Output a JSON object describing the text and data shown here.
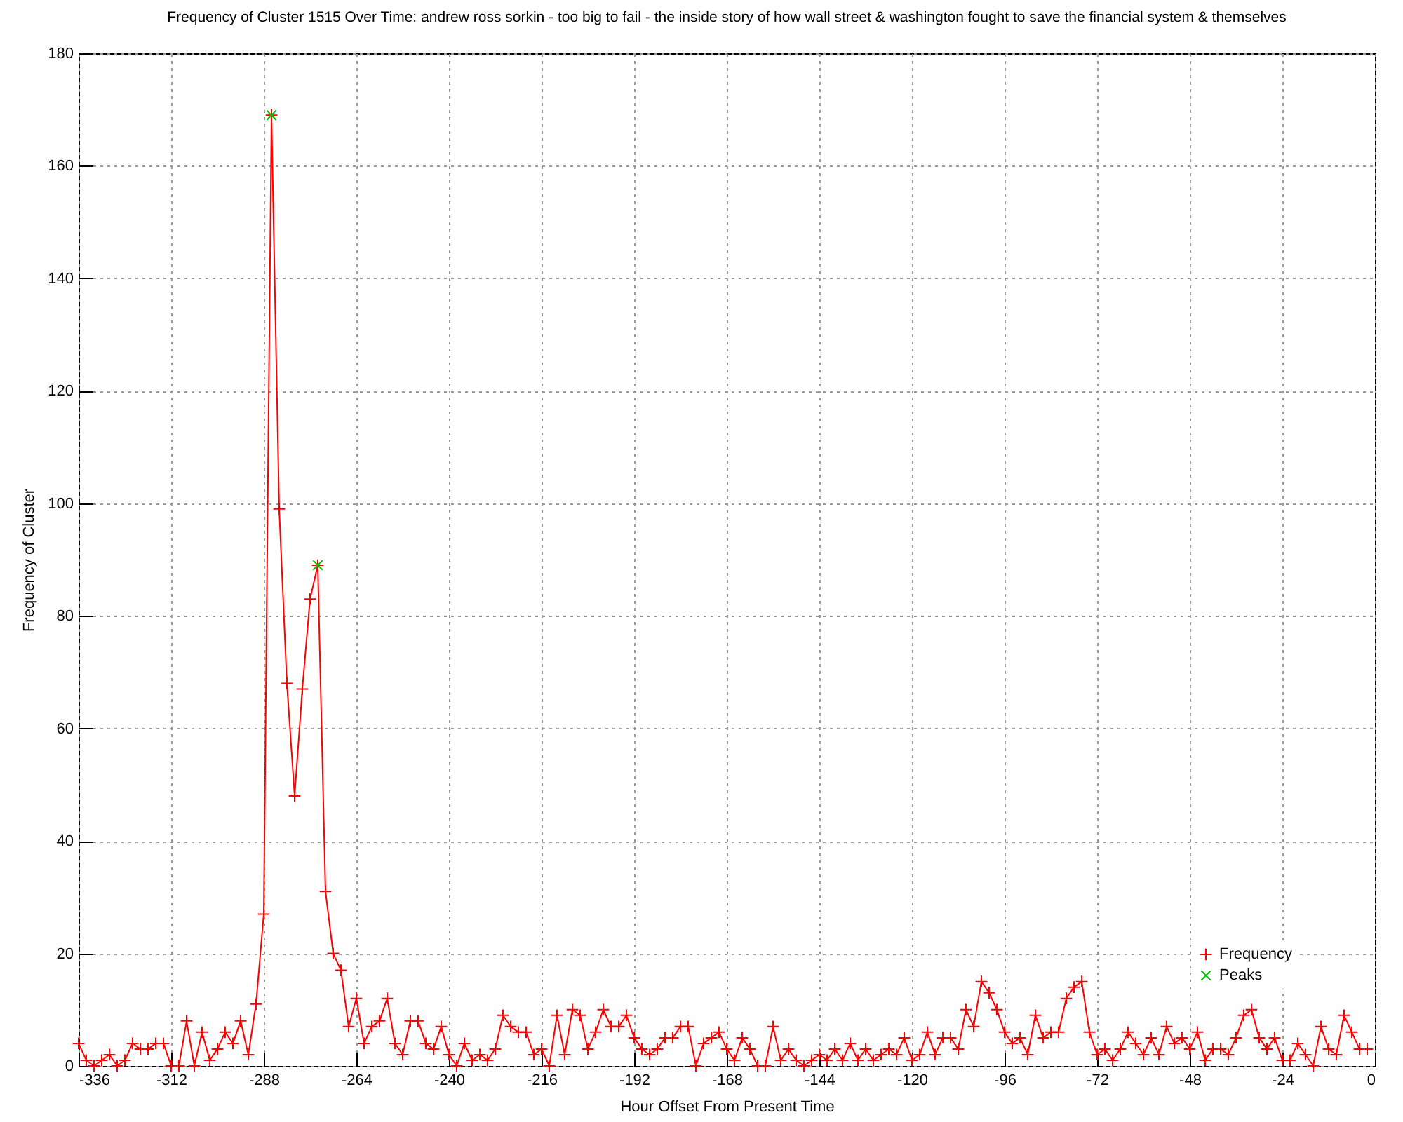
{
  "chart_data": {
    "type": "line",
    "title": "Frequency of Cluster 1515 Over Time: andrew ross sorkin - too big to fail - the inside story of how wall street & washington fought to save the financial system & themselves",
    "xlabel": "Hour Offset From Present Time",
    "ylabel": "Frequency of Cluster",
    "xlim": [
      -336,
      0
    ],
    "xticks": [
      -336,
      -312,
      -288,
      -264,
      -240,
      -216,
      -192,
      -168,
      -144,
      -120,
      -96,
      -72,
      -48,
      -24,
      0
    ],
    "ylim": [
      0,
      180
    ],
    "yticks": [
      0,
      20,
      40,
      60,
      80,
      100,
      120,
      140,
      160,
      180
    ],
    "grid": true,
    "legend": "bottom right",
    "series": [
      {
        "name": "Frequency",
        "color": "#ff0000",
        "marker": "cross",
        "x": [
          -336,
          -334,
          -332,
          -330,
          -328,
          -326,
          -324,
          -322,
          -320,
          -318,
          -316,
          -314,
          -312,
          -310,
          -308,
          -306,
          -304,
          -302,
          -300,
          -298,
          -296,
          -294,
          -292,
          -290,
          -288,
          -286,
          -284,
          -282,
          -280,
          -278,
          -276,
          -274,
          -272,
          -270,
          -268,
          -266,
          -264,
          -262,
          -260,
          -258,
          -256,
          -254,
          -252,
          -250,
          -248,
          -246,
          -244,
          -242,
          -240,
          -238,
          -236,
          -234,
          -232,
          -230,
          -228,
          -226,
          -224,
          -222,
          -220,
          -218,
          -216,
          -214,
          -212,
          -210,
          -208,
          -206,
          -204,
          -202,
          -200,
          -198,
          -196,
          -194,
          -192,
          -190,
          -188,
          -186,
          -184,
          -182,
          -180,
          -178,
          -176,
          -174,
          -172,
          -170,
          -168,
          -166,
          -164,
          -162,
          -160,
          -158,
          -156,
          -154,
          -152,
          -150,
          -148,
          -146,
          -144,
          -142,
          -140,
          -138,
          -136,
          -134,
          -132,
          -130,
          -128,
          -126,
          -124,
          -122,
          -120,
          -118,
          -116,
          -114,
          -112,
          -110,
          -108,
          -106,
          -104,
          -102,
          -100,
          -98,
          -96,
          -94,
          -92,
          -90,
          -88,
          -86,
          -84,
          -82,
          -80,
          -78,
          -76,
          -74,
          -72,
          -70,
          -68,
          -66,
          -64,
          -62,
          -60,
          -58,
          -56,
          -54,
          -52,
          -50,
          -48,
          -46,
          -44,
          -42,
          -40,
          -38,
          -36,
          -34,
          -32,
          -30,
          -28,
          -26,
          -24,
          -22,
          -20,
          -18,
          -16,
          -14,
          -12,
          -10,
          -8,
          -6,
          -4,
          -2
        ],
        "values": [
          4,
          1,
          0,
          1,
          2,
          0,
          1,
          4,
          3,
          3,
          4,
          4,
          0,
          0,
          8,
          0,
          6,
          1,
          3,
          6,
          4,
          8,
          2,
          11,
          27,
          169,
          99,
          68,
          48,
          67,
          83,
          89,
          31,
          20,
          17,
          7,
          12,
          4,
          7,
          8,
          12,
          4,
          2,
          8,
          8,
          4,
          3,
          7,
          2,
          0,
          4,
          1,
          2,
          1,
          3,
          9,
          7,
          6,
          6,
          2,
          3,
          0,
          9,
          2,
          10,
          9,
          3,
          6,
          10,
          7,
          7,
          9,
          5,
          3,
          2,
          3,
          5,
          5,
          7,
          7,
          0,
          4,
          5,
          6,
          3,
          1,
          5,
          3,
          0,
          0,
          7,
          1,
          3,
          1,
          0,
          1,
          2,
          1,
          3,
          1,
          4,
          1,
          3,
          1,
          2,
          3,
          2,
          5,
          1,
          2,
          6,
          2,
          5,
          5,
          3,
          10,
          7,
          15,
          13,
          10,
          6,
          4,
          5,
          2,
          9,
          5,
          6,
          6,
          12,
          14,
          15,
          6,
          2,
          3,
          1,
          3,
          6,
          4,
          2,
          5,
          2,
          7,
          4,
          5,
          3,
          6,
          1,
          3,
          3,
          2,
          5,
          9,
          10,
          5,
          3,
          5,
          1,
          1,
          4,
          2,
          0,
          7,
          3,
          2,
          9,
          6,
          3,
          3
        ]
      },
      {
        "name": "Peaks",
        "type": "scatter",
        "color": "#00c000",
        "marker": "cross",
        "x": [
          -286,
          -274
        ],
        "values": [
          169,
          89
        ]
      }
    ]
  }
}
